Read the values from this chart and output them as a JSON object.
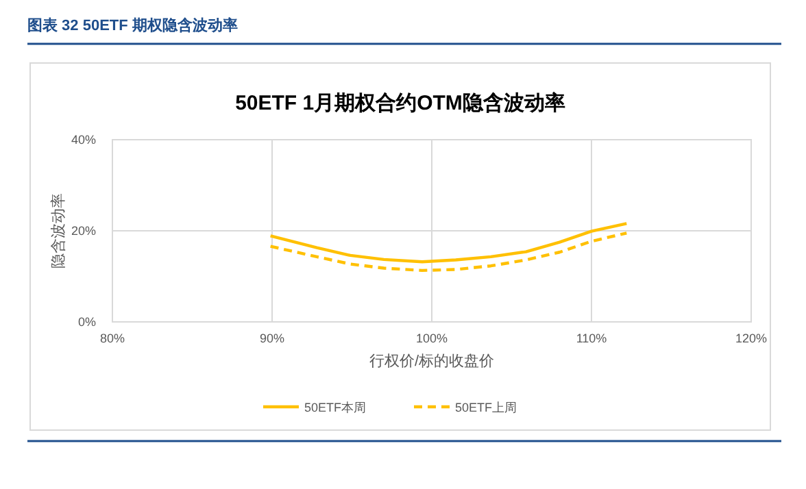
{
  "chart_data": {
    "type": "line",
    "title": "50ETF 1月期权合约OTM隐含波动率",
    "xlabel": "行权价/标的收盘价",
    "ylabel": "隐含波动率",
    "annotations": [
      "图表 32 50ETF 期权隐含波动率"
    ],
    "x": [
      89.9,
      92.8,
      94.9,
      97,
      99.4,
      101.5,
      103.7,
      105.9,
      108,
      110,
      112.2
    ],
    "series": [
      {
        "name": "50ETF本周",
        "color": "#ffc000",
        "line_style": "solid",
        "values": [
          18.9,
          16.3,
          14.6,
          13.7,
          13.2,
          13.6,
          14.3,
          15.4,
          17.5,
          19.9,
          21.6
        ]
      },
      {
        "name": "50ETF上周",
        "color": "#ffc000",
        "line_style": "dashed",
        "values": [
          16.6,
          14.3,
          12.7,
          11.8,
          11.3,
          11.5,
          12.3,
          13.6,
          15.3,
          17.7,
          19.5
        ]
      }
    ],
    "xlim": [
      80,
      120
    ],
    "xticks": [
      {
        "value": 80,
        "label": "80%"
      },
      {
        "value": 90,
        "label": "90%"
      },
      {
        "value": 100,
        "label": "100%"
      },
      {
        "value": 110,
        "label": "110%"
      },
      {
        "value": 120,
        "label": "120%"
      }
    ],
    "ylim": [
      0,
      40
    ],
    "yticks": [
      {
        "value": 0,
        "label": "0%"
      },
      {
        "value": 20,
        "label": "20%"
      },
      {
        "value": 40,
        "label": "40%"
      }
    ],
    "grid": true,
    "legend": "bottom"
  }
}
